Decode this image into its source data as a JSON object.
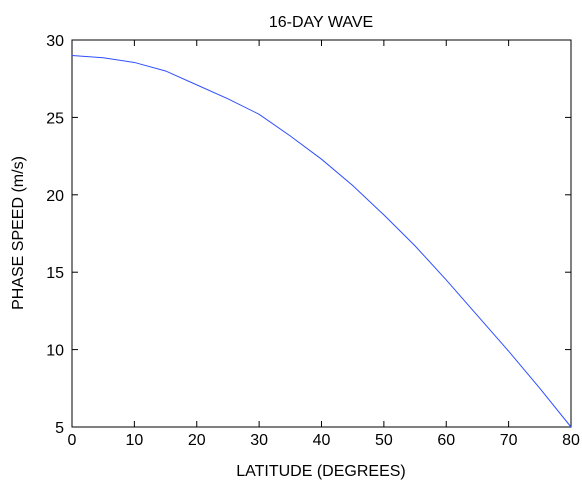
{
  "chart_data": {
    "type": "line",
    "title": "16-DAY WAVE",
    "xlabel": "LATITUDE (DEGREES)",
    "ylabel": "PHASE SPEED (m/s)",
    "xlim": [
      0,
      80
    ],
    "ylim": [
      5,
      30
    ],
    "xticks": [
      0,
      10,
      20,
      30,
      40,
      50,
      60,
      70,
      80
    ],
    "yticks": [
      5,
      10,
      15,
      20,
      25,
      30
    ],
    "grid": false,
    "series": [
      {
        "color": "#2f4fff",
        "x": [
          0,
          5,
          10,
          15,
          20,
          25,
          30,
          35,
          40,
          45,
          50,
          55,
          60,
          65,
          70,
          75,
          80
        ],
        "y": [
          29.0,
          28.85,
          28.55,
          28.0,
          27.1,
          26.2,
          25.2,
          23.8,
          22.3,
          20.6,
          18.7,
          16.7,
          14.5,
          12.2,
          9.9,
          7.5,
          5.0
        ]
      }
    ]
  }
}
